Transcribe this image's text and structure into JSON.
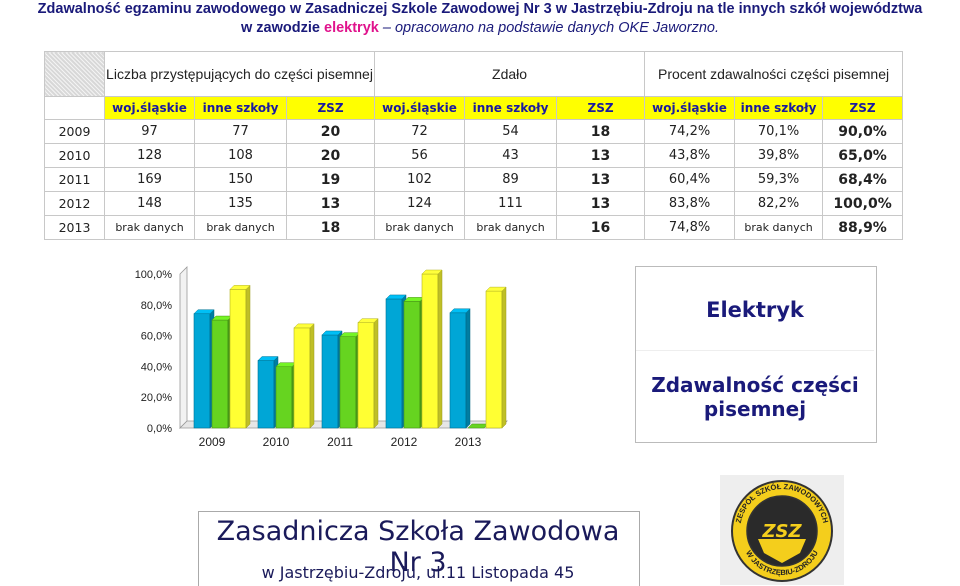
{
  "header": {
    "line1": "Zdawalność egzaminu zawodowego w Zasadniczej Szkole Zawodowej Nr 3 w Jastrzębiu-Zdroju na tle innych szkół województwa",
    "line2_prefix": "w zawodzie ",
    "line2_accent": "elektryk",
    "line2_suffix": " – opracowano na podstawie danych OKE Jaworzno."
  },
  "table": {
    "groups": [
      "Liczba przystępujących do części pisemnej",
      "Zdało",
      "Procent zdawalności części pisemnej"
    ],
    "subheaders": [
      "woj.śląskie",
      "inne szkoły",
      "ZSZ",
      "woj.śląskie",
      "inne szkoły",
      "ZSZ",
      "woj.śląskie",
      "inne szkoły",
      "ZSZ"
    ],
    "rows": [
      {
        "year": "2009",
        "cells": [
          "97",
          "77",
          "20",
          "72",
          "54",
          "18",
          "74,2%",
          "70,1%",
          "90,0%"
        ]
      },
      {
        "year": "2010",
        "cells": [
          "128",
          "108",
          "20",
          "56",
          "43",
          "13",
          "43,8%",
          "39,8%",
          "65,0%"
        ]
      },
      {
        "year": "2011",
        "cells": [
          "169",
          "150",
          "19",
          "102",
          "89",
          "13",
          "60,4%",
          "59,3%",
          "68,4%"
        ]
      },
      {
        "year": "2012",
        "cells": [
          "148",
          "135",
          "13",
          "124",
          "111",
          "13",
          "83,8%",
          "82,2%",
          "100,0%"
        ]
      },
      {
        "year": "2013",
        "cells": [
          "brak danych",
          "brak danych",
          "18",
          "brak danych",
          "brak danych",
          "16",
          "74,8%",
          "brak danych",
          "88,9%"
        ]
      }
    ]
  },
  "chart_data": {
    "type": "bar",
    "categories": [
      "2009",
      "2010",
      "2011",
      "2012",
      "2013"
    ],
    "series": [
      {
        "values": [
          74.2,
          43.8,
          60.4,
          83.8,
          74.8
        ]
      },
      {
        "values": [
          70.1,
          39.8,
          59.3,
          82.2,
          0
        ]
      },
      {
        "values": [
          90.0,
          65.0,
          68.4,
          100.0,
          88.9
        ]
      }
    ],
    "yticks": [
      "0,0%",
      "20,0%",
      "40,0%",
      "60,0%",
      "80,0%",
      "100,0%"
    ],
    "ylim": [
      0,
      100
    ],
    "colors": [
      "#00a6d6",
      "#66d420",
      "#ffff33"
    ],
    "grid": false,
    "style": "3d"
  },
  "legend": {
    "title": "Elektryk",
    "subtitle": "Zdawalność części pisemnej"
  },
  "footer": {
    "title": "Zasadnicza Szkoła Zawodowa Nr 3",
    "address": "w Jastrzębiu-Zdroju, ul.11 Listopada 45"
  },
  "logo": {
    "ring_text_top": "ZESPÓŁ SZKÓŁ ZAWODOWYCH",
    "ring_text_bottom": "W JASTRZĘBIU-ZDROJU",
    "center": "ZSZ"
  }
}
